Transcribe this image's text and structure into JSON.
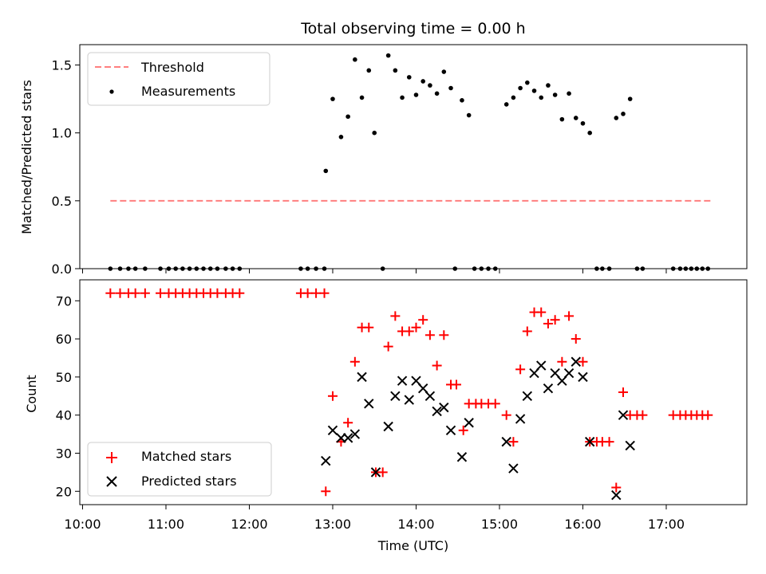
{
  "chart_data": [
    {
      "type": "scatter",
      "title": "Total observing time = 0.00 h",
      "xlabel": "",
      "ylabel": "Matched/Predicted stars",
      "ylim": [
        0,
        1.65
      ],
      "yticks": [
        0.0,
        0.5,
        1.0,
        1.5
      ],
      "ytick_labels": [
        "0.0",
        "0.5",
        "1.0",
        "1.5"
      ],
      "legend_position": "top-left",
      "series": [
        {
          "name": "Threshold",
          "kind": "dashed-line",
          "color": "#ff7f7f",
          "x": [
            "10:20",
            "17:32"
          ],
          "y": [
            0.5,
            0.5
          ]
        },
        {
          "name": "Measurements",
          "kind": "dots",
          "color": "#000000",
          "points": [
            [
              "10:20",
              0
            ],
            [
              "10:27",
              0
            ],
            [
              "10:33",
              0
            ],
            [
              "10:38",
              0
            ],
            [
              "10:45",
              0
            ],
            [
              "10:56",
              0
            ],
            [
              "11:02",
              0
            ],
            [
              "11:07",
              0
            ],
            [
              "11:12",
              0
            ],
            [
              "11:17",
              0
            ],
            [
              "11:22",
              0
            ],
            [
              "11:27",
              0
            ],
            [
              "11:32",
              0
            ],
            [
              "11:37",
              0
            ],
            [
              "11:43",
              0
            ],
            [
              "11:48",
              0
            ],
            [
              "11:53",
              0
            ],
            [
              "12:37",
              0
            ],
            [
              "12:42",
              0
            ],
            [
              "12:48",
              0
            ],
            [
              "12:54",
              0
            ],
            [
              "12:55",
              0.72
            ],
            [
              "13:00",
              1.25
            ],
            [
              "13:06",
              0.97
            ],
            [
              "13:11",
              1.12
            ],
            [
              "13:16",
              1.54
            ],
            [
              "13:21",
              1.26
            ],
            [
              "13:26",
              1.46
            ],
            [
              "13:30",
              1.0
            ],
            [
              "13:36",
              0
            ],
            [
              "13:40",
              1.57
            ],
            [
              "13:45",
              1.46
            ],
            [
              "13:50",
              1.26
            ],
            [
              "13:55",
              1.41
            ],
            [
              "14:00",
              1.28
            ],
            [
              "14:05",
              1.38
            ],
            [
              "14:10",
              1.35
            ],
            [
              "14:15",
              1.29
            ],
            [
              "14:20",
              1.45
            ],
            [
              "14:25",
              1.33
            ],
            [
              "14:28",
              0
            ],
            [
              "14:33",
              1.24
            ],
            [
              "14:38",
              1.13
            ],
            [
              "14:42",
              0
            ],
            [
              "14:47",
              0
            ],
            [
              "14:52",
              0
            ],
            [
              "14:57",
              0
            ],
            [
              "15:05",
              1.21
            ],
            [
              "15:10",
              1.26
            ],
            [
              "15:15",
              1.33
            ],
            [
              "15:20",
              1.37
            ],
            [
              "15:25",
              1.31
            ],
            [
              "15:30",
              1.26
            ],
            [
              "15:35",
              1.35
            ],
            [
              "15:40",
              1.28
            ],
            [
              "15:45",
              1.1
            ],
            [
              "15:50",
              1.29
            ],
            [
              "15:55",
              1.11
            ],
            [
              "16:00",
              1.07
            ],
            [
              "16:05",
              1.0
            ],
            [
              "16:10",
              0
            ],
            [
              "16:14",
              0
            ],
            [
              "16:19",
              0
            ],
            [
              "16:24",
              1.11
            ],
            [
              "16:29",
              1.14
            ],
            [
              "16:34",
              1.25
            ],
            [
              "16:39",
              0
            ],
            [
              "16:43",
              0
            ],
            [
              "17:05",
              0
            ],
            [
              "17:10",
              0
            ],
            [
              "17:14",
              0
            ],
            [
              "17:18",
              0
            ],
            [
              "17:22",
              0
            ],
            [
              "17:26",
              0
            ],
            [
              "17:30",
              0
            ]
          ]
        }
      ]
    },
    {
      "type": "scatter",
      "title": "",
      "xlabel": "Time (UTC)",
      "ylabel": "Count",
      "ylim": [
        16.5,
        75.5
      ],
      "yticks": [
        20,
        30,
        40,
        50,
        60,
        70
      ],
      "ytick_labels": [
        "20",
        "30",
        "40",
        "50",
        "60",
        "70"
      ],
      "xlim": [
        "09:58",
        "17:58"
      ],
      "xticks": [
        "10:00",
        "11:00",
        "12:00",
        "13:00",
        "14:00",
        "15:00",
        "16:00",
        "17:00"
      ],
      "xtick_labels": [
        "10:00",
        "11:00",
        "12:00",
        "13:00",
        "14:00",
        "15:00",
        "16:00",
        "17:00"
      ],
      "legend_position": "bottom-left",
      "series": [
        {
          "name": "Matched stars",
          "marker": "plus",
          "color": "#ff0000",
          "points": [
            [
              "10:20",
              72
            ],
            [
              "10:27",
              72
            ],
            [
              "10:33",
              72
            ],
            [
              "10:38",
              72
            ],
            [
              "10:45",
              72
            ],
            [
              "10:56",
              72
            ],
            [
              "11:02",
              72
            ],
            [
              "11:07",
              72
            ],
            [
              "11:12",
              72
            ],
            [
              "11:17",
              72
            ],
            [
              "11:22",
              72
            ],
            [
              "11:27",
              72
            ],
            [
              "11:32",
              72
            ],
            [
              "11:37",
              72
            ],
            [
              "11:43",
              72
            ],
            [
              "11:48",
              72
            ],
            [
              "11:53",
              72
            ],
            [
              "12:37",
              72
            ],
            [
              "12:42",
              72
            ],
            [
              "12:48",
              72
            ],
            [
              "12:54",
              72
            ],
            [
              "12:55",
              20
            ],
            [
              "13:00",
              45
            ],
            [
              "13:06",
              33
            ],
            [
              "13:11",
              38
            ],
            [
              "13:16",
              54
            ],
            [
              "13:21",
              63
            ],
            [
              "13:26",
              63
            ],
            [
              "13:31",
              25
            ],
            [
              "13:36",
              25
            ],
            [
              "13:40",
              58
            ],
            [
              "13:45",
              66
            ],
            [
              "13:50",
              62
            ],
            [
              "13:55",
              62
            ],
            [
              "14:00",
              63
            ],
            [
              "14:05",
              65
            ],
            [
              "14:10",
              61
            ],
            [
              "14:15",
              53
            ],
            [
              "14:20",
              61
            ],
            [
              "14:25",
              48
            ],
            [
              "14:29",
              48
            ],
            [
              "14:34",
              36
            ],
            [
              "14:38",
              43
            ],
            [
              "14:43",
              43
            ],
            [
              "14:47",
              43
            ],
            [
              "14:52",
              43
            ],
            [
              "14:57",
              43
            ],
            [
              "15:05",
              40
            ],
            [
              "15:10",
              33
            ],
            [
              "15:15",
              52
            ],
            [
              "15:20",
              62
            ],
            [
              "15:25",
              67
            ],
            [
              "15:30",
              67
            ],
            [
              "15:35",
              64
            ],
            [
              "15:40",
              65
            ],
            [
              "15:45",
              54
            ],
            [
              "15:50",
              66
            ],
            [
              "15:55",
              60
            ],
            [
              "16:00",
              54
            ],
            [
              "16:05",
              33
            ],
            [
              "16:10",
              33
            ],
            [
              "16:14",
              33
            ],
            [
              "16:19",
              33
            ],
            [
              "16:24",
              21
            ],
            [
              "16:29",
              46
            ],
            [
              "16:34",
              40
            ],
            [
              "16:39",
              40
            ],
            [
              "16:43",
              40
            ],
            [
              "17:05",
              40
            ],
            [
              "17:10",
              40
            ],
            [
              "17:14",
              40
            ],
            [
              "17:18",
              40
            ],
            [
              "17:22",
              40
            ],
            [
              "17:26",
              40
            ],
            [
              "17:30",
              40
            ]
          ]
        },
        {
          "name": "Predicted stars",
          "marker": "x",
          "color": "#000000",
          "points": [
            [
              "12:55",
              28
            ],
            [
              "13:00",
              36
            ],
            [
              "13:06",
              34
            ],
            [
              "13:11",
              34
            ],
            [
              "13:16",
              35
            ],
            [
              "13:21",
              50
            ],
            [
              "13:26",
              43
            ],
            [
              "13:31",
              25
            ],
            [
              "13:40",
              37
            ],
            [
              "13:45",
              45
            ],
            [
              "13:50",
              49
            ],
            [
              "13:55",
              44
            ],
            [
              "14:00",
              49
            ],
            [
              "14:05",
              47
            ],
            [
              "14:10",
              45
            ],
            [
              "14:15",
              41
            ],
            [
              "14:20",
              42
            ],
            [
              "14:25",
              36
            ],
            [
              "14:33",
              29
            ],
            [
              "14:38",
              38
            ],
            [
              "15:05",
              33
            ],
            [
              "15:10",
              26
            ],
            [
              "15:15",
              39
            ],
            [
              "15:20",
              45
            ],
            [
              "15:25",
              51
            ],
            [
              "15:30",
              53
            ],
            [
              "15:35",
              47
            ],
            [
              "15:40",
              51
            ],
            [
              "15:45",
              49
            ],
            [
              "15:50",
              51
            ],
            [
              "15:55",
              54
            ],
            [
              "16:00",
              50
            ],
            [
              "16:05",
              33
            ],
            [
              "16:24",
              19
            ],
            [
              "16:29",
              40
            ],
            [
              "16:34",
              32
            ]
          ]
        }
      ]
    }
  ]
}
